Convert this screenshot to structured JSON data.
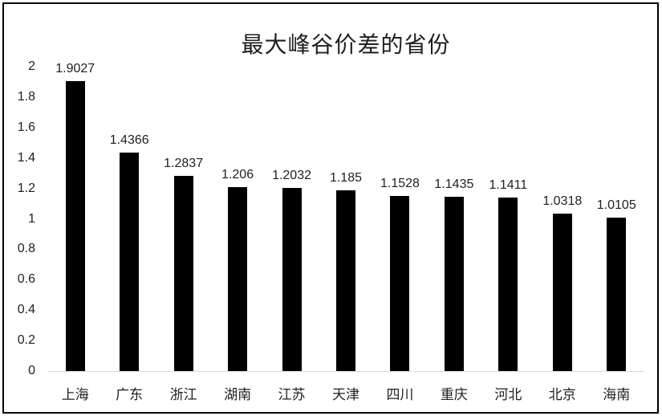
{
  "window": {
    "background": "#ffffff",
    "border_color": "#000000"
  },
  "chart_data": {
    "type": "bar",
    "title": "最大峰谷价差的省份",
    "categories": [
      "上海",
      "广东",
      "浙江",
      "湖南",
      "江苏",
      "天津",
      "四川",
      "重庆",
      "河北",
      "北京",
      "海南"
    ],
    "values": [
      1.9027,
      1.4366,
      1.2837,
      1.206,
      1.2032,
      1.185,
      1.1528,
      1.1435,
      1.1411,
      1.0318,
      1.0105
    ],
    "data_labels": [
      "1.9027",
      "1.4366",
      "1.2837",
      "1.206",
      "1.2032",
      "1.185",
      "1.1528",
      "1.1435",
      "1.1411",
      "1.0318",
      "1.0105"
    ],
    "xlabel": "",
    "ylabel": "",
    "y_ticks": [
      "0",
      "0.2",
      "0.4",
      "0.6",
      "0.8",
      "1",
      "1.2",
      "1.4",
      "1.6",
      "1.8",
      "2"
    ],
    "ylim": [
      0,
      2
    ],
    "grid": false,
    "legend": false,
    "bar_color": "#000000",
    "text_color": "#1f1f1f",
    "baseline_color": "#d9d9d9"
  }
}
